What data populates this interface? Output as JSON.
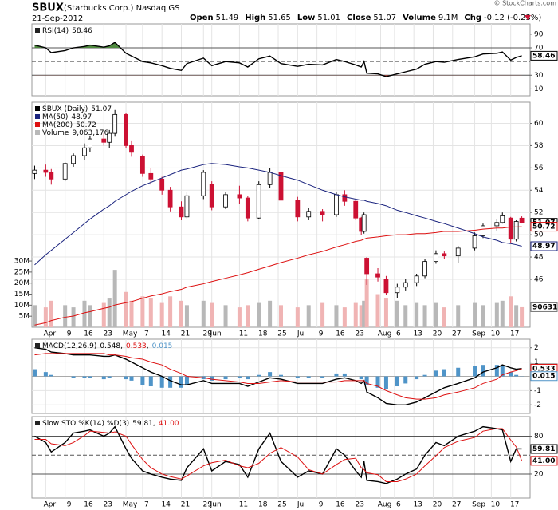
{
  "header": {
    "symbol": "SBUX",
    "name": "(Starbucks Corp.) Nasdaq GS",
    "date": "21-Sep-2012",
    "stats": [
      [
        "Open",
        "51.49"
      ],
      [
        "High",
        "51.65"
      ],
      [
        "Low",
        "51.01"
      ],
      [
        "Close",
        "51.07"
      ],
      [
        "Volume",
        "9.1M"
      ],
      [
        "Chg",
        "-0.12 (-0.23%)"
      ]
    ],
    "watermark": "© StockCharts.com"
  },
  "chart_data": {
    "type": "stock",
    "x": [
      "2012-03-29",
      "2012-04-02",
      "2012-04-04",
      "2012-04-09",
      "2012-04-12",
      "2012-04-16",
      "2012-04-18",
      "2012-04-23",
      "2012-04-25",
      "2012-04-27",
      "2012-05-01",
      "2012-05-03",
      "2012-05-07",
      "2012-05-10",
      "2012-05-14",
      "2012-05-17",
      "2012-05-21",
      "2012-05-23",
      "2012-05-29",
      "2012-06-01",
      "2012-06-06",
      "2012-06-11",
      "2012-06-14",
      "2012-06-18",
      "2012-06-22",
      "2012-06-26",
      "2012-07-02",
      "2012-07-06",
      "2012-07-11",
      "2012-07-16",
      "2012-07-19",
      "2012-07-23",
      "2012-07-25",
      "2012-07-26",
      "2012-07-27",
      "2012-07-31",
      "2012-08-03",
      "2012-08-07",
      "2012-08-10",
      "2012-08-14",
      "2012-08-17",
      "2012-08-21",
      "2012-08-24",
      "2012-08-29",
      "2012-09-04",
      "2012-09-07",
      "2012-09-12",
      "2012-09-14",
      "2012-09-17",
      "2012-09-19",
      "2012-09-21"
    ],
    "xlim": [
      "2012-03-28",
      "2012-09-24"
    ],
    "xticks": [
      {
        "value": "2012-04-02",
        "label": "Apr"
      },
      {
        "value": "2012-04-09",
        "label": "9"
      },
      {
        "value": "2012-04-16",
        "label": "16"
      },
      {
        "value": "2012-04-23",
        "label": "23"
      },
      {
        "value": "2012-05-01",
        "label": "May"
      },
      {
        "value": "2012-05-07",
        "label": "7"
      },
      {
        "value": "2012-05-14",
        "label": "14"
      },
      {
        "value": "2012-05-21",
        "label": "21"
      },
      {
        "value": "2012-05-29",
        "label": "29"
      },
      {
        "value": "2012-06-01",
        "label": "Jun"
      },
      {
        "value": "2012-06-11",
        "label": "11"
      },
      {
        "value": "2012-06-18",
        "label": "18"
      },
      {
        "value": "2012-06-25",
        "label": "25"
      },
      {
        "value": "2012-07-02",
        "label": "Jul"
      },
      {
        "value": "2012-07-09",
        "label": "9"
      },
      {
        "value": "2012-07-16",
        "label": "16"
      },
      {
        "value": "2012-07-23",
        "label": "23"
      },
      {
        "value": "2012-08-01",
        "label": "Aug"
      },
      {
        "value": "2012-08-06",
        "label": "6"
      },
      {
        "value": "2012-08-13",
        "label": "13"
      },
      {
        "value": "2012-08-20",
        "label": "20"
      },
      {
        "value": "2012-08-27",
        "label": "27"
      },
      {
        "value": "2012-09-04",
        "label": "Sep"
      },
      {
        "value": "2012-09-10",
        "label": "10"
      },
      {
        "value": "2012-09-17",
        "label": "17"
      }
    ],
    "panels": [
      {
        "type": "line",
        "ylim": [
          0,
          105
        ],
        "yticks": [
          10,
          30,
          70,
          90
        ],
        "grid": false,
        "reference_lines": [
          30,
          50,
          70
        ],
        "fill_above": {
          "level": 70,
          "color": "#4f8a3f"
        },
        "fill_below": {
          "level": 30,
          "color": "#c0392b"
        },
        "series": [
          {
            "name": "RSI(14)",
            "tag": "58.46",
            "color": "#000000",
            "values": [
              74,
              70,
              63,
              66,
              70,
              72,
              74,
              71,
              73,
              78,
              62,
              58,
              50,
              48,
              44,
              40,
              37,
              47,
              55,
              44,
              50,
              48,
              42,
              54,
              58,
              47,
              43,
              46,
              45,
              53,
              50,
              45,
              42,
              50,
              33,
              32,
              28,
              32,
              35,
              39,
              46,
              50,
              49,
              53,
              57,
              61,
              62,
              64,
              52,
              56,
              58.46
            ]
          }
        ]
      },
      {
        "type": "candlestick",
        "ylim": [
          41.7,
          61.9
        ],
        "yticks": [
          46,
          48,
          50,
          52,
          54,
          56,
          58,
          60
        ],
        "grid": true,
        "y2lim": [
          0,
          102
        ],
        "y2ticks": [
          {
            "value": 5,
            "label": "5M"
          },
          {
            "value": 10,
            "label": "10M"
          },
          {
            "value": 15,
            "label": "15M"
          },
          {
            "value": 20,
            "label": "20M"
          },
          {
            "value": 25,
            "label": "25M"
          },
          {
            "value": 30,
            "label": "30M"
          }
        ],
        "series": [
          {
            "name": "SBUX (Daily)",
            "tag": "51.07",
            "up_color": "#000000",
            "down_color": "#cc1133",
            "open": [
              55.5,
              55.8,
              55.6,
              55.0,
              56.4,
              57.1,
              57.8,
              58.6,
              58.3,
              59.1,
              60.8,
              58.0,
              57.0,
              55.5,
              55.0,
              54.0,
              52.5,
              51.6,
              53.5,
              54.5,
              52.5,
              53.6,
              53.3,
              51.5,
              54.5,
              55.6,
              53.1,
              51.6,
              52.1,
              51.8,
              53.6,
              53.0,
              51.5,
              50.3,
              47.9,
              46.5,
              46.0,
              44.8,
              45.3,
              45.7,
              46.3,
              47.6,
              48.3,
              48.1,
              48.8,
              49.9,
              50.8,
              51.1,
              51.5,
              49.6,
              51.49
            ],
            "high": [
              56.2,
              56.3,
              55.9,
              56.5,
              57.3,
              58.2,
              58.9,
              59.1,
              59.4,
              61.2,
              60.9,
              58.4,
              57.2,
              56.0,
              55.2,
              54.3,
              53.0,
              53.8,
              55.8,
              54.8,
              53.8,
              54.4,
              53.5,
              54.8,
              56.0,
              55.7,
              53.4,
              52.4,
              52.3,
              53.8,
              54.0,
              53.1,
              51.6,
              52.0,
              48.0,
              47.0,
              46.3,
              45.6,
              46.0,
              46.5,
              47.8,
              48.6,
              48.5,
              49.0,
              50.2,
              51.0,
              51.4,
              52.0,
              51.6,
              51.3,
              51.65
            ],
            "low": [
              55.0,
              55.2,
              54.5,
              54.8,
              56.1,
              56.7,
              57.4,
              58.0,
              57.8,
              58.8,
              57.8,
              57.0,
              55.2,
              54.5,
              53.6,
              52.1,
              51.3,
              51.4,
              53.2,
              52.2,
              52.3,
              52.8,
              51.2,
              51.4,
              54.2,
              52.8,
              51.2,
              51.3,
              51.2,
              51.6,
              52.6,
              51.3,
              50.0,
              50.1,
              45.5,
              45.8,
              44.6,
              44.3,
              45.0,
              45.4,
              46.1,
              47.4,
              47.8,
              47.5,
              48.6,
              49.7,
              50.3,
              51.0,
              49.2,
              49.4,
              51.01
            ],
            "close": [
              55.8,
              55.6,
              55.0,
              56.4,
              57.1,
              57.8,
              58.6,
              58.3,
              59.1,
              60.8,
              58.0,
              57.4,
              55.5,
              55.0,
              54.0,
              52.5,
              51.6,
              53.5,
              55.6,
              52.5,
              53.6,
              53.3,
              51.5,
              54.5,
              55.6,
              53.1,
              51.6,
              52.1,
              51.8,
              53.6,
              53.0,
              51.5,
              50.3,
              51.8,
              46.5,
              46.2,
              44.8,
              45.3,
              45.7,
              46.3,
              47.6,
              48.3,
              48.1,
              48.8,
              49.9,
              50.8,
              51.1,
              51.7,
              49.6,
              51.19,
              51.07
            ]
          },
          {
            "name": "MA(50)",
            "tag": "48.97",
            "color": "#1a237e",
            "values": [
              47.3,
              48.2,
              48.6,
              49.6,
              50.2,
              51.0,
              51.4,
              52.3,
              52.6,
              53.0,
              53.6,
              53.9,
              54.4,
              54.7,
              55.1,
              55.4,
              55.8,
              55.9,
              56.3,
              56.4,
              56.3,
              56.1,
              56.0,
              55.8,
              55.6,
              55.3,
              54.9,
              54.5,
              54.0,
              53.6,
              53.4,
              53.2,
              53.1,
              53.1,
              53.0,
              52.8,
              52.6,
              52.2,
              52.0,
              51.7,
              51.5,
              51.2,
              51.0,
              50.6,
              50.1,
              49.8,
              49.5,
              49.3,
              49.2,
              49.1,
              48.97
            ]
          },
          {
            "name": "MA(200)",
            "tag": "50.72",
            "color": "#dd1111",
            "values": [
              41.9,
              42.1,
              42.3,
              42.6,
              42.7,
              43.0,
              43.1,
              43.4,
              43.5,
              43.7,
              43.9,
              44.0,
              44.3,
              44.5,
              44.7,
              44.9,
              45.1,
              45.3,
              45.6,
              45.8,
              46.1,
              46.4,
              46.6,
              46.9,
              47.2,
              47.5,
              47.9,
              48.2,
              48.5,
              48.9,
              49.1,
              49.4,
              49.5,
              49.6,
              49.7,
              49.8,
              49.9,
              50.0,
              50.0,
              50.1,
              50.1,
              50.2,
              50.3,
              50.3,
              50.4,
              50.5,
              50.6,
              50.6,
              50.7,
              50.7,
              50.72
            ]
          },
          {
            "name": "Volume",
            "legend_value": "9,063,176",
            "tag": "90631",
            "axis": "y2",
            "style": "bar",
            "color": "#777777",
            "up_color": "#b8b8b8",
            "down_color": "#f0b4b4",
            "values": [
              10,
              9,
              12,
              10,
              9,
              12,
              10,
              11,
              13,
              26,
              16,
              12,
              14,
              13,
              11,
              14,
              12,
              10,
              12,
              11,
              10,
              9,
              10,
              11,
              12,
              10,
              9,
              10,
              11,
              10,
              9,
              11,
              10,
              12,
              22,
              15,
              13,
              12,
              10,
              11,
              10,
              11,
              9,
              10,
              11,
              10,
              11,
              12,
              14,
              10,
              9.063176
            ]
          }
        ]
      },
      {
        "type": "line",
        "ylim": [
          -2.6,
          2.6
        ],
        "yticks": [
          -2,
          -1,
          1,
          2
        ],
        "grid": true,
        "zero_line": true,
        "legend_separator": ",",
        "series": [
          {
            "name": "MACD(12,26,9)",
            "tag": "0.548",
            "color": "#000000",
            "values": [
              2.0,
              1.9,
              1.7,
              1.6,
              1.5,
              1.5,
              1.5,
              1.4,
              1.4,
              1.5,
              1.2,
              1.0,
              0.6,
              0.3,
              0.0,
              -0.3,
              -0.6,
              -0.6,
              -0.3,
              -0.5,
              -0.5,
              -0.5,
              -0.7,
              -0.4,
              -0.1,
              -0.2,
              -0.5,
              -0.5,
              -0.5,
              -0.2,
              -0.1,
              -0.3,
              -0.5,
              -0.3,
              -1.1,
              -1.5,
              -1.9,
              -2.0,
              -2.0,
              -1.8,
              -1.5,
              -1.1,
              -0.8,
              -0.5,
              -0.1,
              0.3,
              0.6,
              0.8,
              0.6,
              0.5,
              0.548
            ]
          },
          {
            "tag": "0.533",
            "color": "#dd1111",
            "values": [
              1.5,
              1.6,
              1.6,
              1.6,
              1.6,
              1.6,
              1.6,
              1.6,
              1.5,
              1.5,
              1.4,
              1.3,
              1.2,
              1.0,
              0.8,
              0.5,
              0.2,
              0.0,
              -0.1,
              -0.2,
              -0.3,
              -0.4,
              -0.5,
              -0.5,
              -0.4,
              -0.3,
              -0.4,
              -0.4,
              -0.4,
              -0.4,
              -0.3,
              -0.3,
              -0.3,
              -0.3,
              -0.5,
              -0.7,
              -1.0,
              -1.3,
              -1.5,
              -1.6,
              -1.6,
              -1.5,
              -1.3,
              -1.1,
              -0.8,
              -0.5,
              -0.2,
              0.1,
              0.3,
              0.4,
              0.533
            ]
          },
          {
            "tag": "0.015",
            "style": "bar",
            "color": "#4f94c8",
            "values": [
              0.5,
              0.3,
              0.1,
              0,
              -0.1,
              -0.1,
              -0.1,
              -0.2,
              -0.1,
              0,
              -0.2,
              -0.3,
              -0.6,
              -0.7,
              -0.8,
              -0.8,
              -0.8,
              -0.6,
              -0.2,
              -0.3,
              -0.2,
              -0.1,
              -0.2,
              0.1,
              0.3,
              0.1,
              -0.1,
              -0.1,
              -0.1,
              0.2,
              0.2,
              0,
              -0.2,
              0,
              -0.6,
              -0.8,
              -0.9,
              -0.7,
              -0.5,
              -0.2,
              0.1,
              0.4,
              0.5,
              0.6,
              0.7,
              0.8,
              0.8,
              0.7,
              0.3,
              0.1,
              0.015
            ]
          }
        ]
      },
      {
        "type": "line",
        "ylim": [
          -18,
          111
        ],
        "yticks": [
          20,
          80
        ],
        "grid": false,
        "reference_lines": [
          20,
          50,
          80
        ],
        "legend_separator": ",",
        "series": [
          {
            "name": "Slow STO %K(14) %D(3)",
            "tag": "59.81",
            "color": "#000000",
            "values": [
              80,
              70,
              55,
              70,
              85,
              88,
              90,
              80,
              85,
              95,
              60,
              45,
              25,
              20,
              15,
              12,
              10,
              30,
              60,
              25,
              40,
              35,
              15,
              60,
              85,
              40,
              15,
              25,
              20,
              60,
              50,
              25,
              15,
              40,
              10,
              8,
              5,
              12,
              20,
              28,
              50,
              70,
              65,
              80,
              88,
              95,
              92,
              90,
              40,
              60,
              59.81
            ]
          },
          {
            "tag": "41.00",
            "color": "#dd1111",
            "values": [
              75,
              75,
              68,
              65,
              70,
              81,
              88,
              86,
              85,
              87,
              80,
              67,
              43,
              30,
              20,
              16,
              12,
              17,
              33,
              38,
              42,
              33,
              30,
              37,
              53,
              62,
              47,
              27,
              20,
              35,
              43,
              45,
              30,
              27,
              22,
              19,
              8,
              8,
              12,
              20,
              33,
              49,
              62,
              72,
              78,
              88,
              92,
              92,
              74,
              63,
              41
            ]
          }
        ]
      }
    ]
  }
}
